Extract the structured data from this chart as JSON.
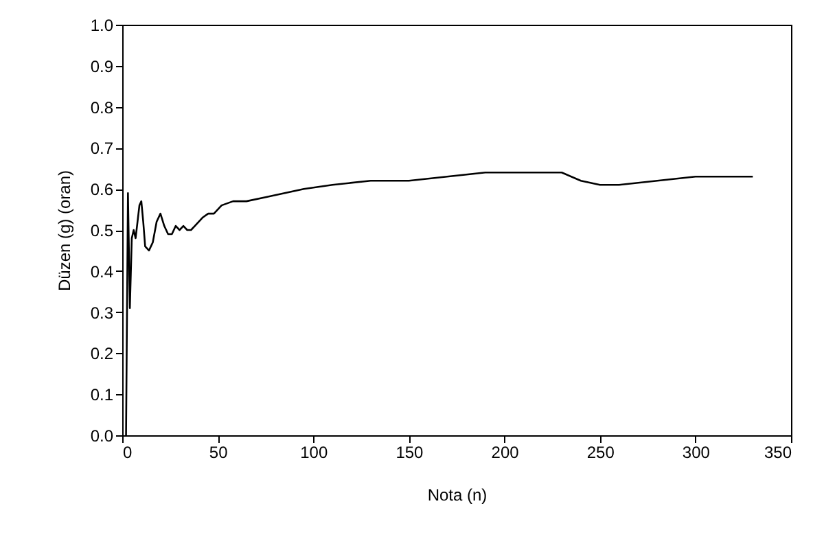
{
  "chart_data": {
    "type": "line",
    "xlabel": "Nota (n)",
    "ylabel": "Düzen (g) (oran)",
    "x": [
      2,
      3,
      4,
      5,
      6,
      7,
      8,
      9,
      10,
      11,
      12,
      14,
      16,
      18,
      20,
      22,
      24,
      26,
      28,
      30,
      32,
      34,
      36,
      38,
      40,
      42,
      45,
      48,
      52,
      58,
      65,
      75,
      85,
      95,
      110,
      130,
      140,
      150,
      170,
      190,
      200,
      210,
      220,
      230,
      240,
      250,
      260,
      280,
      300,
      320,
      325,
      330
    ],
    "series": [
      {
        "color": "#000000",
        "values": [
          0,
          0.59,
          0.31,
          0.48,
          0.5,
          0.48,
          0.52,
          0.56,
          0.57,
          0.52,
          0.46,
          0.45,
          0.47,
          0.52,
          0.54,
          0.51,
          0.49,
          0.49,
          0.51,
          0.5,
          0.51,
          0.5,
          0.5,
          0.51,
          0.52,
          0.53,
          0.54,
          0.54,
          0.56,
          0.57,
          0.57,
          0.58,
          0.59,
          0.6,
          0.61,
          0.62,
          0.62,
          0.62,
          0.63,
          0.64,
          0.64,
          0.64,
          0.64,
          0.64,
          0.62,
          0.61,
          0.61,
          0.62,
          0.63,
          0.63,
          0.63,
          0.63
        ]
      }
    ],
    "xlim": [
      0,
      350
    ],
    "xticks": [
      0,
      50,
      100,
      150,
      200,
      250,
      300,
      350
    ],
    "ylim": [
      0,
      1
    ],
    "yticks": [
      {
        "value": 0,
        "label": "0.0"
      },
      0.1,
      0.2,
      0.3,
      0.4,
      0.5,
      0.6,
      0.7,
      0.8,
      0.9,
      {
        "value": 1,
        "label": "1.0"
      }
    ],
    "grid": false,
    "marker": "none",
    "line_style": "solid"
  }
}
